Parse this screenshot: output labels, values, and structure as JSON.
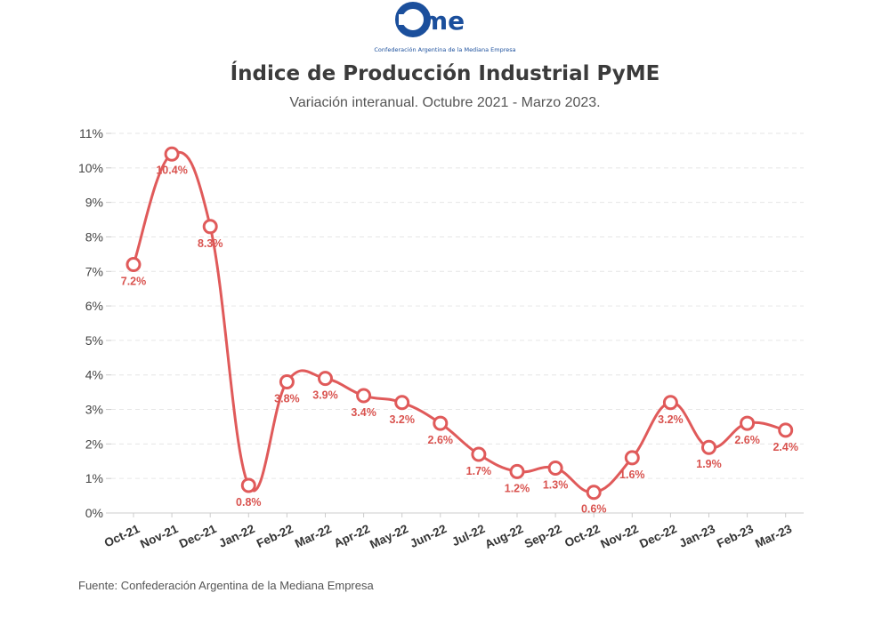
{
  "logo": {
    "wordmark": "came",
    "tagline": "Confederación Argentina de la Mediana Empresa",
    "color": "#1b4f9c"
  },
  "header": {
    "title": "Índice de Producción Industrial PyME",
    "subtitle": "Variación interanual. Octubre 2021 - Marzo 2023."
  },
  "footer": {
    "source": "Fuente: Confederación Argentina de la Mediana Empresa"
  },
  "chart_data": {
    "type": "line",
    "title": "Índice de Producción Industrial PyME",
    "subtitle": "Variación interanual. Octubre 2021 - Marzo 2023.",
    "xlabel": "",
    "ylabel": "",
    "categories": [
      "Oct-21",
      "Nov-21",
      "Dec-21",
      "Jan-22",
      "Feb-22",
      "Mar-22",
      "Apr-22",
      "May-22",
      "Jun-22",
      "Jul-22",
      "Aug-22",
      "Sep-22",
      "Oct-22",
      "Nov-22",
      "Dec-22",
      "Jan-23",
      "Feb-23",
      "Mar-23"
    ],
    "values": [
      7.2,
      10.4,
      8.3,
      0.8,
      3.8,
      3.9,
      3.4,
      3.2,
      2.6,
      1.7,
      1.2,
      1.3,
      0.6,
      1.6,
      3.2,
      1.9,
      2.6,
      2.4
    ],
    "data_labels": [
      "7.2%",
      "10.4%",
      "8.3%",
      "0.8%",
      "3.8%",
      "3.9%",
      "3.4%",
      "3.2%",
      "2.6%",
      "1.7%",
      "1.2%",
      "1.3%",
      "0.6%",
      "1.6%",
      "3.2%",
      "1.9%",
      "2.6%",
      "2.4%"
    ],
    "ylim": [
      0,
      11
    ],
    "yticks": [
      0,
      1,
      2,
      3,
      4,
      5,
      6,
      7,
      8,
      9,
      10,
      11
    ],
    "ytick_labels": [
      "0%",
      "1%",
      "2%",
      "3%",
      "4%",
      "5%",
      "6%",
      "7%",
      "8%",
      "9%",
      "10%",
      "11%"
    ],
    "grid": true,
    "legend": false,
    "line_color": "#e05a5a",
    "label_color": "#d9534f"
  }
}
